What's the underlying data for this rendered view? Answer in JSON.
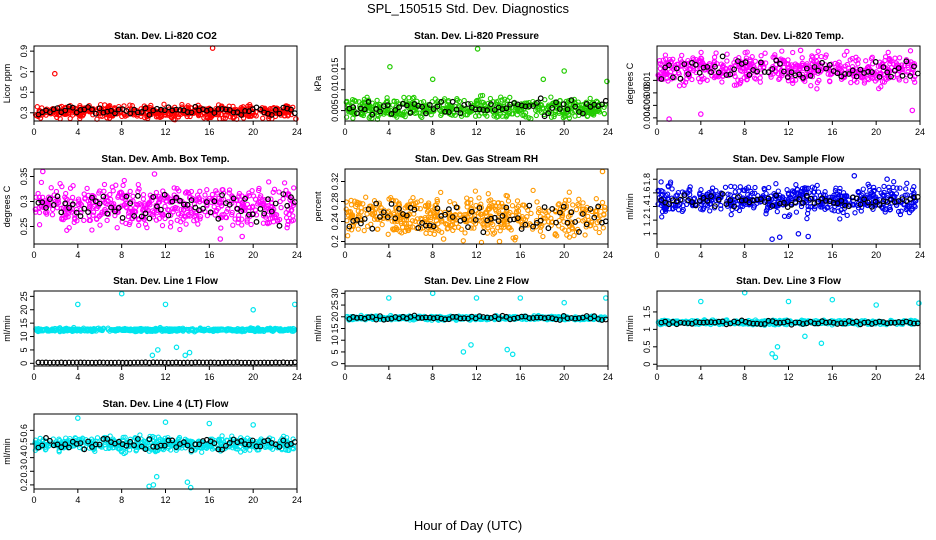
{
  "page": {
    "title": "SPL_150515  Std. Dev. Diagnostics",
    "xlabel": "Hour of Day (UTC)"
  },
  "colors": {
    "red": "#ff0000",
    "green": "#22cc00",
    "magenta": "#ff00ff",
    "orange": "#ff9900",
    "blue": "#0000ee",
    "cyan": "#00e5ee",
    "black": "#000000"
  },
  "chart_data": [
    {
      "type": "scatter",
      "title": "Stan. Dev. Li-820 CO2",
      "ylabel": "Licor ppm",
      "xlim": [
        0,
        24
      ],
      "ylim": [
        0.22,
        0.95
      ],
      "xticks": [
        0,
        4,
        8,
        12,
        16,
        20,
        24
      ],
      "yticks": [
        0.3,
        0.5,
        0.7,
        0.9
      ],
      "color": "#ff0000",
      "center": 0.31,
      "spread": 0.03,
      "black_center": 0.32,
      "black_spread": 0.02,
      "outliers": [
        [
          1.9,
          0.68
        ],
        [
          16.3,
          0.93
        ],
        [
          23.9,
          0.24
        ]
      ]
    },
    {
      "type": "scatter",
      "title": "Stan. Dev. Li-820 Pressure",
      "ylabel": "kPa",
      "xlim": [
        0,
        24
      ],
      "ylim": [
        0.0025,
        0.0205
      ],
      "xticks": [
        0,
        4,
        8,
        12,
        16,
        20,
        24
      ],
      "yticks": [
        0.005,
        0.01,
        0.015
      ],
      "color": "#22cc00",
      "center": 0.0055,
      "spread": 0.0012,
      "black_center": 0.0058,
      "black_spread": 0.001,
      "outliers": [
        [
          4.1,
          0.0155
        ],
        [
          8.0,
          0.0125
        ],
        [
          12.1,
          0.0198
        ],
        [
          18.1,
          0.0125
        ],
        [
          20.0,
          0.0145
        ],
        [
          23.9,
          0.012
        ]
      ]
    },
    {
      "type": "scatter",
      "title": "Stan. Dev. Li-820 Temp.",
      "ylabel": "degrees C",
      "xlim": [
        0,
        24
      ],
      "ylim": [
        0.0035,
        0.0155
      ],
      "xticks": [
        0,
        4,
        8,
        12,
        16,
        20,
        24
      ],
      "yticks": [
        0.004,
        0.006,
        0.008,
        0.01
      ],
      "color": "#ff00ff",
      "center": 0.0118,
      "spread": 0.0012,
      "black_center": 0.0118,
      "black_spread": 0.0008,
      "outliers": [
        [
          1.1,
          0.0038
        ],
        [
          4.0,
          0.0046
        ],
        [
          23.3,
          0.0052
        ],
        [
          13.1,
          0.0148
        ]
      ]
    },
    {
      "type": "scatter",
      "title": "Stan. Dev. Amb. Box Temp.",
      "ylabel": "degrees C",
      "xlim": [
        0,
        24
      ],
      "ylim": [
        0.215,
        0.365
      ],
      "xticks": [
        0,
        4,
        8,
        12,
        16,
        20,
        24
      ],
      "yticks": [
        0.25,
        0.3,
        0.35
      ],
      "color": "#ff00ff",
      "center": 0.29,
      "spread": 0.02,
      "black_center": 0.29,
      "black_spread": 0.015,
      "outliers": [
        [
          0.8,
          0.36
        ],
        [
          11.0,
          0.355
        ],
        [
          17.0,
          0.225
        ],
        [
          19.0,
          0.23
        ]
      ]
    },
    {
      "type": "scatter",
      "title": "Stan. Dev. Gas Stream RH",
      "ylabel": "percent",
      "xlim": [
        0,
        24
      ],
      "ylim": [
        0.195,
        0.345
      ],
      "xticks": [
        0,
        4,
        8,
        12,
        16,
        20,
        24
      ],
      "yticks": [
        0.2,
        0.24,
        0.28,
        0.32
      ],
      "color": "#ff9900",
      "center": 0.25,
      "spread": 0.02,
      "black_center": 0.25,
      "black_spread": 0.015,
      "outliers": [
        [
          23.5,
          0.34
        ],
        [
          9.0,
          0.205
        ],
        [
          14.1,
          0.2
        ]
      ]
    },
    {
      "type": "scatter",
      "title": "Stan. Dev. Sample Flow",
      "ylabel": "ml/min",
      "xlim": [
        0,
        24
      ],
      "ylim": [
        0.85,
        1.95
      ],
      "xticks": [
        0,
        4,
        8,
        12,
        16,
        20,
        24
      ],
      "yticks": [
        1.0,
        1.2,
        1.4,
        1.6,
        1.8
      ],
      "color": "#0000ee",
      "center": 1.5,
      "spread": 0.1,
      "black_center": 1.48,
      "black_spread": 0.05,
      "outliers": [
        [
          10.5,
          0.92
        ],
        [
          11.2,
          0.95
        ],
        [
          12.9,
          1.0
        ],
        [
          13.8,
          0.96
        ],
        [
          18.0,
          1.85
        ],
        [
          21.0,
          1.8
        ]
      ]
    },
    {
      "type": "scatter",
      "title": "Stan. Dev. Line 1 Flow",
      "ylabel": "ml/min",
      "xlim": [
        0,
        24
      ],
      "ylim": [
        -1,
        27
      ],
      "xticks": [
        0,
        4,
        8,
        12,
        16,
        20,
        24
      ],
      "yticks": [
        0,
        5,
        10,
        15,
        20,
        25
      ],
      "color": "#00e5ee",
      "center": 12.5,
      "spread": 0.3,
      "black_center": 0.3,
      "black_spread": 0.05,
      "outliers": [
        [
          4.0,
          22
        ],
        [
          8.0,
          26
        ],
        [
          12.0,
          22
        ],
        [
          20.0,
          20
        ],
        [
          23.8,
          22
        ],
        [
          10.8,
          3
        ],
        [
          11.3,
          5
        ],
        [
          13.0,
          6
        ],
        [
          13.8,
          3
        ],
        [
          14.2,
          4
        ]
      ]
    },
    {
      "type": "scatter",
      "title": "Stan. Dev. Line 2 Flow",
      "ylabel": "ml/min",
      "xlim": [
        0,
        24
      ],
      "ylim": [
        -1,
        31
      ],
      "xticks": [
        0,
        4,
        8,
        12,
        16,
        20,
        24
      ],
      "yticks": [
        0,
        5,
        10,
        15,
        20,
        25,
        30
      ],
      "color": "#00e5ee",
      "center": 19.5,
      "spread": 0.4,
      "black_center": 19.5,
      "black_spread": 0.4,
      "outliers": [
        [
          4.0,
          28
        ],
        [
          8.0,
          30
        ],
        [
          12.0,
          28
        ],
        [
          16.0,
          28
        ],
        [
          20.0,
          26
        ],
        [
          23.8,
          28
        ],
        [
          10.8,
          5
        ],
        [
          11.5,
          8
        ],
        [
          14.8,
          6
        ],
        [
          15.3,
          4
        ]
      ]
    },
    {
      "type": "scatter",
      "title": "Stan. Dev. Line 3 Flow",
      "ylabel": "ml/min",
      "xlim": [
        0,
        24
      ],
      "ylim": [
        -0.05,
        2.1
      ],
      "xticks": [
        0,
        4,
        8,
        12,
        16,
        20,
        24
      ],
      "yticks": [
        0,
        0.5,
        1.0,
        1.5
      ],
      "color": "#00e5ee",
      "center": 1.2,
      "spread": 0.03,
      "black_center": 1.2,
      "black_spread": 0.03,
      "outliers": [
        [
          4.0,
          1.8
        ],
        [
          8.0,
          2.05
        ],
        [
          12.0,
          1.8
        ],
        [
          16.0,
          1.85
        ],
        [
          20.0,
          1.7
        ],
        [
          23.9,
          1.75
        ],
        [
          10.5,
          0.3
        ],
        [
          10.8,
          0.2
        ],
        [
          11.0,
          0.5
        ],
        [
          13.5,
          0.8
        ],
        [
          15.0,
          0.6
        ]
      ]
    },
    {
      "type": "scatter",
      "title": "Stan. Dev. Line 4 (LT) Flow",
      "ylabel": "ml/min",
      "xlim": [
        0,
        24
      ],
      "ylim": [
        0.17,
        0.72
      ],
      "xticks": [
        0,
        4,
        8,
        12,
        16,
        20,
        24
      ],
      "yticks": [
        0.2,
        0.3,
        0.4,
        0.5,
        0.6
      ],
      "color": "#00e5ee",
      "center": 0.5,
      "spread": 0.025,
      "black_center": 0.5,
      "black_spread": 0.02,
      "outliers": [
        [
          4.0,
          0.69
        ],
        [
          10.5,
          0.19
        ],
        [
          10.9,
          0.2
        ],
        [
          11.2,
          0.26
        ],
        [
          12.0,
          0.66
        ],
        [
          14.0,
          0.22
        ],
        [
          14.3,
          0.18
        ],
        [
          16.0,
          0.65
        ],
        [
          20.0,
          0.64
        ]
      ]
    }
  ]
}
